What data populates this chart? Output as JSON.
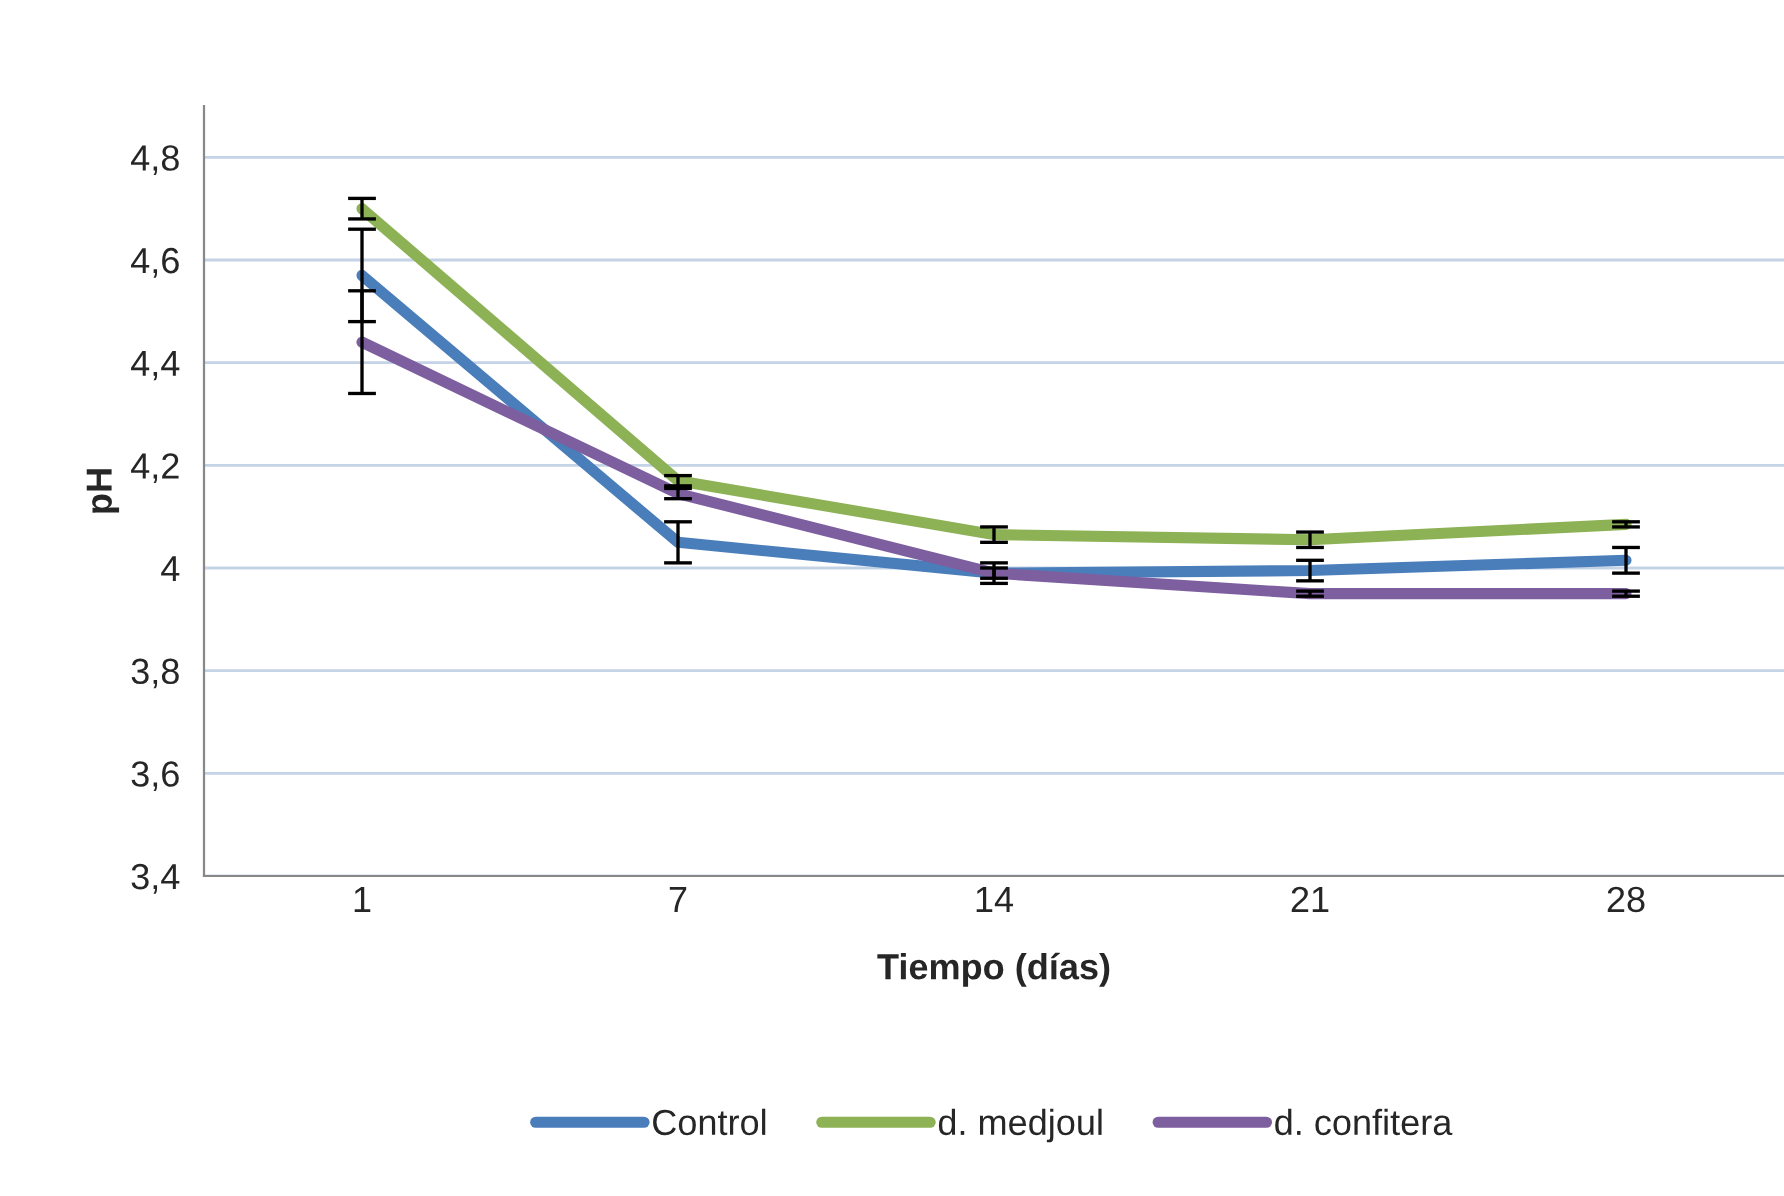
{
  "chart_data": {
    "type": "line",
    "xlabel": "Tiempo (días)",
    "ylabel": "pH",
    "categories": [
      "1",
      "7",
      "14",
      "21",
      "28"
    ],
    "series": [
      {
        "name": "Control",
        "color": "#4a7ebb",
        "values": [
          4.57,
          4.05,
          3.99,
          3.995,
          4.015
        ],
        "errors": [
          0.09,
          0.04,
          0.02,
          0.02,
          0.025
        ]
      },
      {
        "name": "d. medjoul",
        "color": "#8db255",
        "values": [
          4.7,
          4.17,
          4.065,
          4.055,
          4.085
        ],
        "errors": [
          0.02,
          0.01,
          0.015,
          0.015,
          0.005
        ]
      },
      {
        "name": "d. confitera",
        "color": "#7d5fa0",
        "values": [
          4.44,
          4.145,
          3.99,
          3.95,
          3.95
        ],
        "errors": [
          0.1,
          0.01,
          0.01,
          0.005,
          0.005
        ]
      }
    ],
    "ylim": [
      3.4,
      4.9
    ],
    "yticks": [
      {
        "value": 3.4,
        "label": "3,4"
      },
      {
        "value": 3.6,
        "label": "3,6"
      },
      {
        "value": 3.8,
        "label": "3,8"
      },
      {
        "value": 4,
        "label": "4"
      },
      {
        "value": 4.2,
        "label": "4,2"
      },
      {
        "value": 4.4,
        "label": "4,4"
      },
      {
        "value": 4.6,
        "label": "4,6"
      },
      {
        "value": 4.8,
        "label": "4,8"
      }
    ],
    "grid": "y",
    "legend": "bottom",
    "marker": "none",
    "line_style": "solid"
  }
}
